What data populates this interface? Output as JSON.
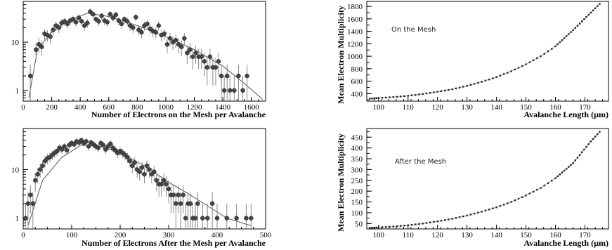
{
  "chart_data": [
    {
      "type": "scatter",
      "xlabel": "Number of Electrons on the Mesh per Avalanche",
      "ylabel": "",
      "xlim": [
        0,
        1700
      ],
      "ylim": [
        0.6,
        70
      ],
      "yscale": "log",
      "xticks": [
        0,
        200,
        400,
        600,
        800,
        1000,
        1200,
        1400,
        1600
      ],
      "yticks": [
        1,
        10
      ],
      "points": {
        "x": [
          50,
          90,
          110,
          130,
          150,
          170,
          190,
          210,
          230,
          250,
          270,
          290,
          310,
          330,
          350,
          370,
          390,
          410,
          430,
          450,
          470,
          490,
          510,
          530,
          550,
          570,
          590,
          610,
          630,
          650,
          670,
          690,
          710,
          730,
          750,
          770,
          790,
          810,
          830,
          850,
          870,
          890,
          910,
          930,
          950,
          970,
          990,
          1010,
          1030,
          1050,
          1070,
          1090,
          1110,
          1130,
          1150,
          1170,
          1190,
          1210,
          1230,
          1250,
          1270,
          1290,
          1310,
          1330,
          1350,
          1370,
          1390,
          1410,
          1430,
          1450,
          1480,
          1510,
          1540,
          1570
        ],
        "y": [
          2,
          7,
          9,
          8,
          15,
          14,
          13,
          18,
          22,
          20,
          25,
          27,
          24,
          28,
          30,
          26,
          32,
          27,
          22,
          25,
          43,
          38,
          30,
          27,
          35,
          28,
          26,
          38,
          32,
          37,
          28,
          24,
          30,
          27,
          22,
          20,
          33,
          18,
          16,
          22,
          24,
          19,
          17,
          16,
          22,
          14,
          15,
          9,
          12,
          10,
          11,
          9,
          8,
          12,
          6,
          7,
          5,
          6,
          5,
          5,
          4,
          3,
          5,
          3,
          3,
          4,
          2,
          1,
          2,
          1,
          1,
          2,
          1,
          2
        ]
      },
      "fit": {
        "x": [
          40,
          100,
          200,
          300,
          450,
          600,
          800,
          1000,
          1200,
          1400,
          1550,
          1680
        ],
        "y": [
          0.7,
          7,
          16,
          26,
          40,
          34,
          22,
          13,
          7,
          3.2,
          1.4,
          0.65
        ]
      }
    },
    {
      "type": "line",
      "xlabel": "Avalanche Length (µm)",
      "ylabel": "Mean Electron Multiplicity",
      "annotation": "On the Mesh",
      "xlim": [
        96,
        178
      ],
      "ylim": [
        280,
        1880
      ],
      "xticks": [
        100,
        110,
        120,
        130,
        140,
        150,
        160,
        170
      ],
      "yticks": [
        400,
        600,
        800,
        1000,
        1200,
        1400,
        1600,
        1800
      ],
      "series": [
        {
          "x": [
            97,
            100,
            105,
            110,
            115,
            120,
            125,
            130,
            135,
            140,
            145,
            150,
            155,
            160,
            163,
            166,
            169,
            172,
            175
          ],
          "y": [
            320,
            330,
            345,
            365,
            395,
            430,
            470,
            525,
            590,
            665,
            760,
            870,
            1000,
            1160,
            1290,
            1420,
            1560,
            1700,
            1840
          ]
        }
      ]
    },
    {
      "type": "scatter",
      "xlabel": "Number of Electrons After the Mesh per Avalanche",
      "ylabel": "",
      "xlim": [
        0,
        500
      ],
      "ylim": [
        0.6,
        70
      ],
      "yscale": "log",
      "xticks": [
        0,
        100,
        200,
        300,
        400,
        500
      ],
      "yticks": [
        1,
        10
      ],
      "points": {
        "x": [
          5,
          10,
          15,
          20,
          25,
          30,
          35,
          40,
          45,
          50,
          55,
          60,
          65,
          70,
          75,
          80,
          85,
          90,
          95,
          100,
          105,
          110,
          115,
          120,
          125,
          130,
          135,
          140,
          145,
          150,
          155,
          160,
          165,
          170,
          175,
          180,
          185,
          190,
          195,
          200,
          205,
          210,
          215,
          220,
          225,
          230,
          235,
          240,
          245,
          250,
          255,
          260,
          265,
          270,
          275,
          280,
          285,
          290,
          295,
          300,
          305,
          310,
          315,
          320,
          325,
          330,
          335,
          340,
          345,
          350,
          355,
          360,
          370,
          380,
          390,
          400,
          420,
          440,
          460,
          470
        ],
        "y": [
          1,
          2,
          3,
          2,
          6,
          8,
          10,
          12,
          15,
          17,
          18,
          20,
          22,
          24,
          28,
          26,
          30,
          25,
          32,
          35,
          33,
          38,
          36,
          40,
          35,
          38,
          30,
          36,
          33,
          30,
          28,
          35,
          32,
          26,
          30,
          34,
          28,
          25,
          22,
          24,
          22,
          20,
          18,
          15,
          12,
          14,
          10,
          9,
          11,
          8,
          12,
          10,
          8,
          9,
          6,
          5,
          5,
          6,
          5,
          4,
          3,
          3,
          2,
          3,
          2,
          3,
          1,
          2,
          2,
          1,
          1,
          2,
          1,
          1,
          2,
          1,
          1,
          1,
          1,
          1
        ]
      },
      "fit": {
        "x": [
          10,
          40,
          80,
          120,
          160,
          200,
          250,
          300,
          340,
          380,
          420,
          470
        ],
        "y": [
          0.7,
          6,
          18,
          32,
          30,
          22,
          12,
          5.5,
          3.2,
          1.8,
          1,
          0.7
        ]
      }
    },
    {
      "type": "line",
      "xlabel": "Avalanche Length (µm)",
      "ylabel": "Mean Electron Multiplicity",
      "annotation": "After the Mesh",
      "xlim": [
        96,
        178
      ],
      "ylim": [
        25,
        490
      ],
      "xticks": [
        100,
        110,
        120,
        130,
        140,
        150,
        160,
        170
      ],
      "yticks": [
        50,
        100,
        150,
        200,
        250,
        300,
        350,
        400,
        450
      ],
      "series": [
        {
          "x": [
            97,
            100,
            105,
            110,
            115,
            120,
            125,
            130,
            135,
            140,
            145,
            150,
            155,
            160,
            163,
            166,
            169,
            172,
            175
          ],
          "y": [
            30,
            32,
            36,
            42,
            50,
            60,
            72,
            87,
            105,
            125,
            150,
            180,
            215,
            260,
            295,
            330,
            380,
            430,
            475
          ]
        }
      ]
    }
  ]
}
